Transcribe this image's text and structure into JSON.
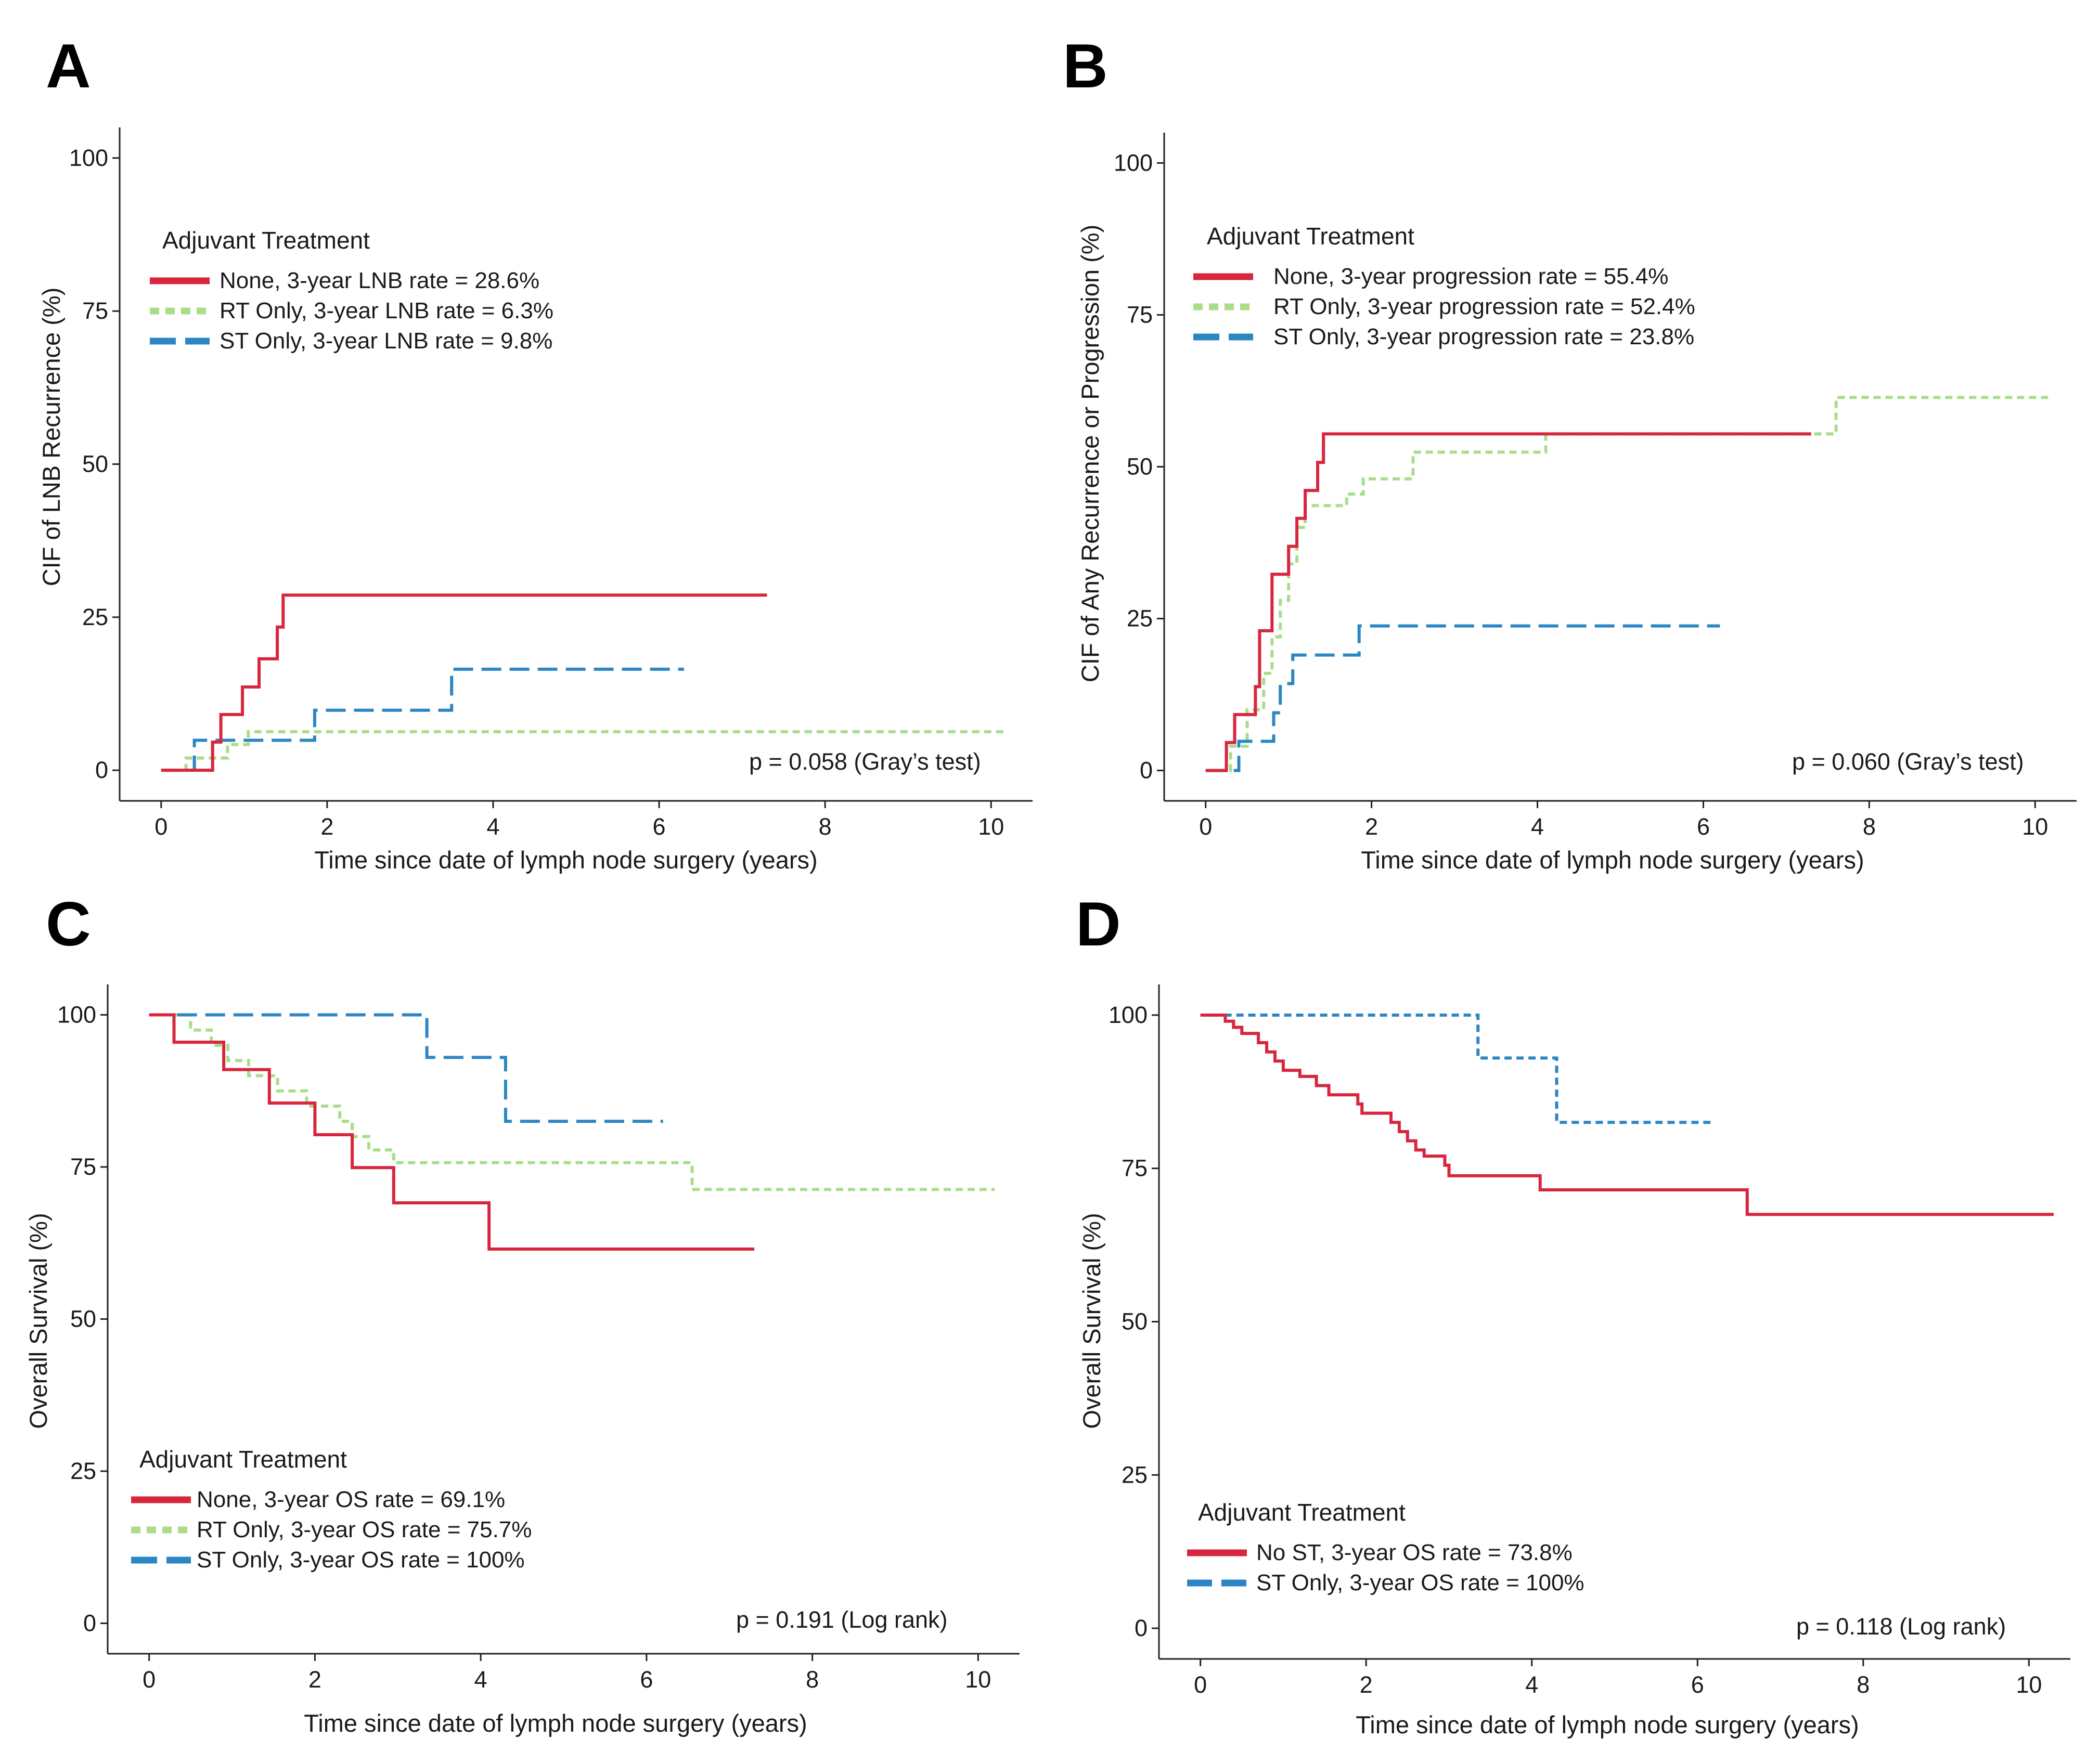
{
  "colors": {
    "red": "#d7263d",
    "green": "#a8dd8a",
    "blue": "#2c86c4"
  },
  "chart_data": [
    {
      "panel": "A",
      "type": "line",
      "title": "",
      "xlabel": "Time since date of lymph node surgery (years)",
      "ylabel": "CIF of LNB Recurrence (%)",
      "xlim": [
        -0.5,
        10.5
      ],
      "ylim": [
        -5,
        105
      ],
      "xticks": [
        0,
        2,
        4,
        6,
        8,
        10
      ],
      "yticks": [
        0,
        25,
        50,
        75,
        100
      ],
      "legend_title": "Adjuvant Treatment",
      "legend_position": "top-left",
      "annotation": "p = 0.058 (Gray’s test)",
      "series": [
        {
          "name": "None, 3-year LNB rate = 28.6%",
          "color": "red",
          "style": "solid",
          "points": [
            [
              0,
              0
            ],
            [
              0.62,
              0
            ],
            [
              0.62,
              4.6
            ],
            [
              0.72,
              4.6
            ],
            [
              0.72,
              9.1
            ],
            [
              0.98,
              9.1
            ],
            [
              0.98,
              13.6
            ],
            [
              1.18,
              13.6
            ],
            [
              1.18,
              18.2
            ],
            [
              1.4,
              18.2
            ],
            [
              1.4,
              23.4
            ],
            [
              1.47,
              23.4
            ],
            [
              1.47,
              28.6
            ],
            [
              7.3,
              28.6
            ]
          ]
        },
        {
          "name": "RT Only, 3-year LNB rate = 6.3%",
          "color": "green",
          "style": "dotted",
          "points": [
            [
              0,
              0
            ],
            [
              0.3,
              0
            ],
            [
              0.3,
              2
            ],
            [
              0.8,
              2
            ],
            [
              0.8,
              4.2
            ],
            [
              1.05,
              4.2
            ],
            [
              1.05,
              6.3
            ],
            [
              10.2,
              6.3
            ]
          ]
        },
        {
          "name": "ST Only, 3-year LNB rate = 9.8%",
          "color": "blue",
          "style": "dashed",
          "points": [
            [
              0,
              0
            ],
            [
              0.4,
              0
            ],
            [
              0.4,
              4.9
            ],
            [
              1.85,
              4.9
            ],
            [
              1.85,
              9.8
            ],
            [
              3.5,
              9.8
            ],
            [
              3.5,
              16.5
            ],
            [
              6.3,
              16.5
            ]
          ]
        }
      ]
    },
    {
      "panel": "B",
      "type": "line",
      "title": "",
      "xlabel": "Time since date of lymph node surgery (years)",
      "ylabel": "CIF of Any Recurrence or Progression (%)",
      "xlim": [
        -0.5,
        10.5
      ],
      "ylim": [
        -5,
        105
      ],
      "xticks": [
        0,
        2,
        4,
        6,
        8,
        10
      ],
      "yticks": [
        0,
        25,
        50,
        75,
        100
      ],
      "legend_title": "Adjuvant Treatment",
      "legend_position": "top-left",
      "annotation": "p = 0.060 (Gray’s test)",
      "series": [
        {
          "name": "None, 3-year progression rate = 55.4%",
          "color": "red",
          "style": "solid",
          "points": [
            [
              0,
              0
            ],
            [
              0.25,
              0
            ],
            [
              0.25,
              4.6
            ],
            [
              0.35,
              4.6
            ],
            [
              0.35,
              9.2
            ],
            [
              0.6,
              9.2
            ],
            [
              0.6,
              13.8
            ],
            [
              0.65,
              13.8
            ],
            [
              0.65,
              23
            ],
            [
              0.8,
              23
            ],
            [
              0.8,
              32.3
            ],
            [
              1.0,
              32.3
            ],
            [
              1.0,
              36.9
            ],
            [
              1.1,
              36.9
            ],
            [
              1.1,
              41.5
            ],
            [
              1.2,
              41.5
            ],
            [
              1.2,
              46.1
            ],
            [
              1.35,
              46.1
            ],
            [
              1.35,
              50.7
            ],
            [
              1.42,
              50.7
            ],
            [
              1.42,
              55.4
            ],
            [
              7.3,
              55.4
            ]
          ]
        },
        {
          "name": "RT Only, 3-year progression rate = 52.4%",
          "color": "green",
          "style": "dotted",
          "points": [
            [
              0,
              0
            ],
            [
              0.3,
              0
            ],
            [
              0.3,
              4
            ],
            [
              0.5,
              4
            ],
            [
              0.5,
              10
            ],
            [
              0.7,
              10
            ],
            [
              0.7,
              16
            ],
            [
              0.8,
              16
            ],
            [
              0.8,
              22
            ],
            [
              0.9,
              22
            ],
            [
              0.9,
              28
            ],
            [
              1.0,
              28
            ],
            [
              1.0,
              34
            ],
            [
              1.1,
              34
            ],
            [
              1.1,
              40
            ],
            [
              1.2,
              40
            ],
            [
              1.2,
              43.6
            ],
            [
              1.7,
              43.6
            ],
            [
              1.7,
              45.5
            ],
            [
              1.9,
              45.5
            ],
            [
              1.9,
              48
            ],
            [
              2.5,
              48
            ],
            [
              2.5,
              52.4
            ],
            [
              4.1,
              52.4
            ],
            [
              4.1,
              55.4
            ],
            [
              7.6,
              55.4
            ],
            [
              7.6,
              61.4
            ],
            [
              10.2,
              61.4
            ]
          ]
        },
        {
          "name": "ST Only, 3-year progression rate = 23.8%",
          "color": "blue",
          "style": "dashed",
          "points": [
            [
              0,
              0
            ],
            [
              0.4,
              0
            ],
            [
              0.4,
              4.8
            ],
            [
              0.82,
              4.8
            ],
            [
              0.82,
              9.5
            ],
            [
              0.9,
              9.5
            ],
            [
              0.9,
              14.3
            ],
            [
              1.05,
              14.3
            ],
            [
              1.05,
              19
            ],
            [
              1.85,
              19
            ],
            [
              1.85,
              23.8
            ],
            [
              6.2,
              23.8
            ]
          ]
        }
      ]
    },
    {
      "panel": "C",
      "type": "line",
      "title": "",
      "xlabel": "Time since date of lymph node surgery (years)",
      "ylabel": "Overall Survival (%)",
      "xlim": [
        -0.5,
        10.5
      ],
      "ylim": [
        -5,
        105
      ],
      "xticks": [
        0,
        2,
        4,
        6,
        8,
        10
      ],
      "yticks": [
        0,
        25,
        50,
        75,
        100
      ],
      "legend_title": "Adjuvant Treatment",
      "legend_position": "bottom-left",
      "annotation": "p = 0.191 (Log rank)",
      "series": [
        {
          "name": "None, 3-year OS rate = 69.1%",
          "color": "red",
          "style": "solid",
          "points": [
            [
              0,
              100
            ],
            [
              0.3,
              100
            ],
            [
              0.3,
              95.5
            ],
            [
              0.9,
              95.5
            ],
            [
              0.9,
              91
            ],
            [
              1.45,
              91
            ],
            [
              1.45,
              85.5
            ],
            [
              2.0,
              85.5
            ],
            [
              2.0,
              80.3
            ],
            [
              2.45,
              80.3
            ],
            [
              2.45,
              74.9
            ],
            [
              2.95,
              74.9
            ],
            [
              2.95,
              69.1
            ],
            [
              4.1,
              69.1
            ],
            [
              4.1,
              61.5
            ],
            [
              7.3,
              61.5
            ]
          ]
        },
        {
          "name": "RT Only, 3-year OS rate = 75.7%",
          "color": "green",
          "style": "dotted",
          "points": [
            [
              0,
              100
            ],
            [
              0.5,
              100
            ],
            [
              0.5,
              97.5
            ],
            [
              0.75,
              97.5
            ],
            [
              0.75,
              95
            ],
            [
              0.95,
              95
            ],
            [
              0.95,
              92.5
            ],
            [
              1.2,
              92.5
            ],
            [
              1.2,
              90
            ],
            [
              1.55,
              90
            ],
            [
              1.55,
              87.5
            ],
            [
              1.9,
              87.5
            ],
            [
              1.9,
              85
            ],
            [
              2.3,
              85
            ],
            [
              2.3,
              82.5
            ],
            [
              2.45,
              82.5
            ],
            [
              2.45,
              80
            ],
            [
              2.65,
              80
            ],
            [
              2.65,
              77.8
            ],
            [
              2.95,
              77.8
            ],
            [
              2.95,
              75.7
            ],
            [
              6.55,
              75.7
            ],
            [
              6.55,
              71.3
            ],
            [
              10.2,
              71.3
            ]
          ]
        },
        {
          "name": "ST Only, 3-year OS rate = 100%",
          "color": "blue",
          "style": "dashed",
          "points": [
            [
              0,
              100
            ],
            [
              3.35,
              100
            ],
            [
              3.35,
              93
            ],
            [
              4.3,
              93
            ],
            [
              4.3,
              82.5
            ],
            [
              6.2,
              82.5
            ]
          ]
        }
      ]
    },
    {
      "panel": "D",
      "type": "line",
      "title": "",
      "xlabel": "Time since date of lymph node surgery (years)",
      "ylabel": "Overall Survival (%)",
      "xlim": [
        -0.5,
        10.5
      ],
      "ylim": [
        -5,
        105
      ],
      "xticks": [
        0,
        2,
        4,
        6,
        8,
        10
      ],
      "yticks": [
        0,
        25,
        50,
        75,
        100
      ],
      "legend_title": "Adjuvant Treatment",
      "legend_position": "bottom-left",
      "annotation": "p = 0.118 (Log rank)",
      "series": [
        {
          "name": "No ST, 3-year OS rate = 73.8%",
          "color": "red",
          "style": "solid",
          "points": [
            [
              0,
              100
            ],
            [
              0.3,
              100
            ],
            [
              0.3,
              99
            ],
            [
              0.4,
              99
            ],
            [
              0.4,
              98
            ],
            [
              0.5,
              98
            ],
            [
              0.5,
              97
            ],
            [
              0.7,
              97
            ],
            [
              0.7,
              95.5
            ],
            [
              0.8,
              95.5
            ],
            [
              0.8,
              94
            ],
            [
              0.9,
              94
            ],
            [
              0.9,
              92.5
            ],
            [
              1.0,
              92.5
            ],
            [
              1.0,
              91
            ],
            [
              1.2,
              91
            ],
            [
              1.2,
              90
            ],
            [
              1.4,
              90
            ],
            [
              1.4,
              88.5
            ],
            [
              1.55,
              88.5
            ],
            [
              1.55,
              87
            ],
            [
              1.9,
              87
            ],
            [
              1.9,
              85.5
            ],
            [
              1.95,
              85.5
            ],
            [
              1.95,
              84
            ],
            [
              2.3,
              84
            ],
            [
              2.3,
              82.5
            ],
            [
              2.4,
              82.5
            ],
            [
              2.4,
              81
            ],
            [
              2.5,
              81
            ],
            [
              2.5,
              79.5
            ],
            [
              2.6,
              79.5
            ],
            [
              2.6,
              78
            ],
            [
              2.7,
              78
            ],
            [
              2.7,
              77
            ],
            [
              2.95,
              77
            ],
            [
              2.95,
              75.5
            ],
            [
              3.0,
              75.5
            ],
            [
              3.0,
              73.8
            ],
            [
              4.1,
              73.8
            ],
            [
              4.1,
              71.5
            ],
            [
              6.6,
              71.5
            ],
            [
              6.6,
              67.5
            ],
            [
              10.3,
              67.5
            ]
          ]
        },
        {
          "name": "ST Only, 3-year OS rate = 100%",
          "color": "blue",
          "style": "dotted-blue",
          "points": [
            [
              0,
              100
            ],
            [
              3.35,
              100
            ],
            [
              3.35,
              93
            ],
            [
              4.3,
              93
            ],
            [
              4.3,
              82.5
            ],
            [
              6.2,
              82.5
            ]
          ]
        }
      ]
    }
  ]
}
